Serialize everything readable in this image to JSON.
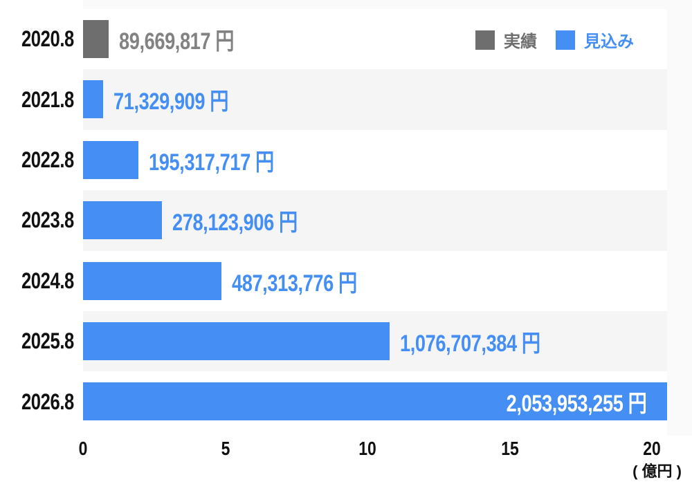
{
  "chart_data": {
    "type": "bar",
    "orientation": "horizontal",
    "title": "",
    "categories": [
      "2020.8",
      "2021.8",
      "2022.8",
      "2023.8",
      "2024.8",
      "2025.8",
      "2026.8"
    ],
    "rows": [
      {
        "year": "2020.8",
        "value_yen": 89669817,
        "value_label": "89,669,817 円",
        "series": "実績",
        "color_key": "actual",
        "label_placement": "outside"
      },
      {
        "year": "2021.8",
        "value_yen": 71329909,
        "value_label": "71,329,909 円",
        "series": "見込み",
        "color_key": "forecast",
        "label_placement": "outside"
      },
      {
        "year": "2022.8",
        "value_yen": 195317717,
        "value_label": "195,317,717 円",
        "series": "見込み",
        "color_key": "forecast",
        "label_placement": "outside"
      },
      {
        "year": "2023.8",
        "value_yen": 278123906,
        "value_label": "278,123,906 円",
        "series": "見込み",
        "color_key": "forecast",
        "label_placement": "outside"
      },
      {
        "year": "2024.8",
        "value_yen": 487313776,
        "value_label": "487,313,776 円",
        "series": "見込み",
        "color_key": "forecast",
        "label_placement": "outside"
      },
      {
        "year": "2025.8",
        "value_yen": 1076707384,
        "value_label": "1,076,707,384 円",
        "series": "見込み",
        "color_key": "forecast",
        "label_placement": "outside"
      },
      {
        "year": "2026.8",
        "value_yen": 2053953255,
        "value_label": "2,053,953,255 円",
        "series": "見込み",
        "color_key": "forecast",
        "label_placement": "inside"
      }
    ],
    "series": [
      {
        "name": "実績",
        "color": "#6e6e6e",
        "values": [
          89669817,
          null,
          null,
          null,
          null,
          null,
          null
        ]
      },
      {
        "name": "見込み",
        "color": "#448ef4",
        "values": [
          null,
          71329909,
          195317717,
          278123906,
          487313776,
          1076707384,
          2053953255
        ]
      }
    ],
    "x_axis": {
      "tick_labels": [
        "0",
        "5",
        "10",
        "15",
        "20"
      ],
      "tick_values_oku": [
        0,
        5,
        10,
        15,
        20
      ],
      "unit_label": "( 億円 )",
      "oku_in_yen": 100000000,
      "range_oku": [
        0,
        20.54
      ],
      "grid": false
    },
    "legend_position": "top-right"
  },
  "legend": {
    "actual": {
      "label": "実績",
      "color": "#6e6e6e"
    },
    "forecast": {
      "label": "見込み",
      "color": "#448ef4"
    }
  },
  "colors": {
    "actual_bar": "#6e6e6e",
    "actual_value_text": "#828282",
    "forecast_bar": "#448ef4",
    "forecast_value_text": "#448ef4",
    "inside_value_text": "#ffffff",
    "category_text": "#111111",
    "tick_text": "#111111",
    "stripe_base": "#ffffff",
    "stripe_alt": "#f5f5f5",
    "outer_margin": "#fafafa"
  }
}
